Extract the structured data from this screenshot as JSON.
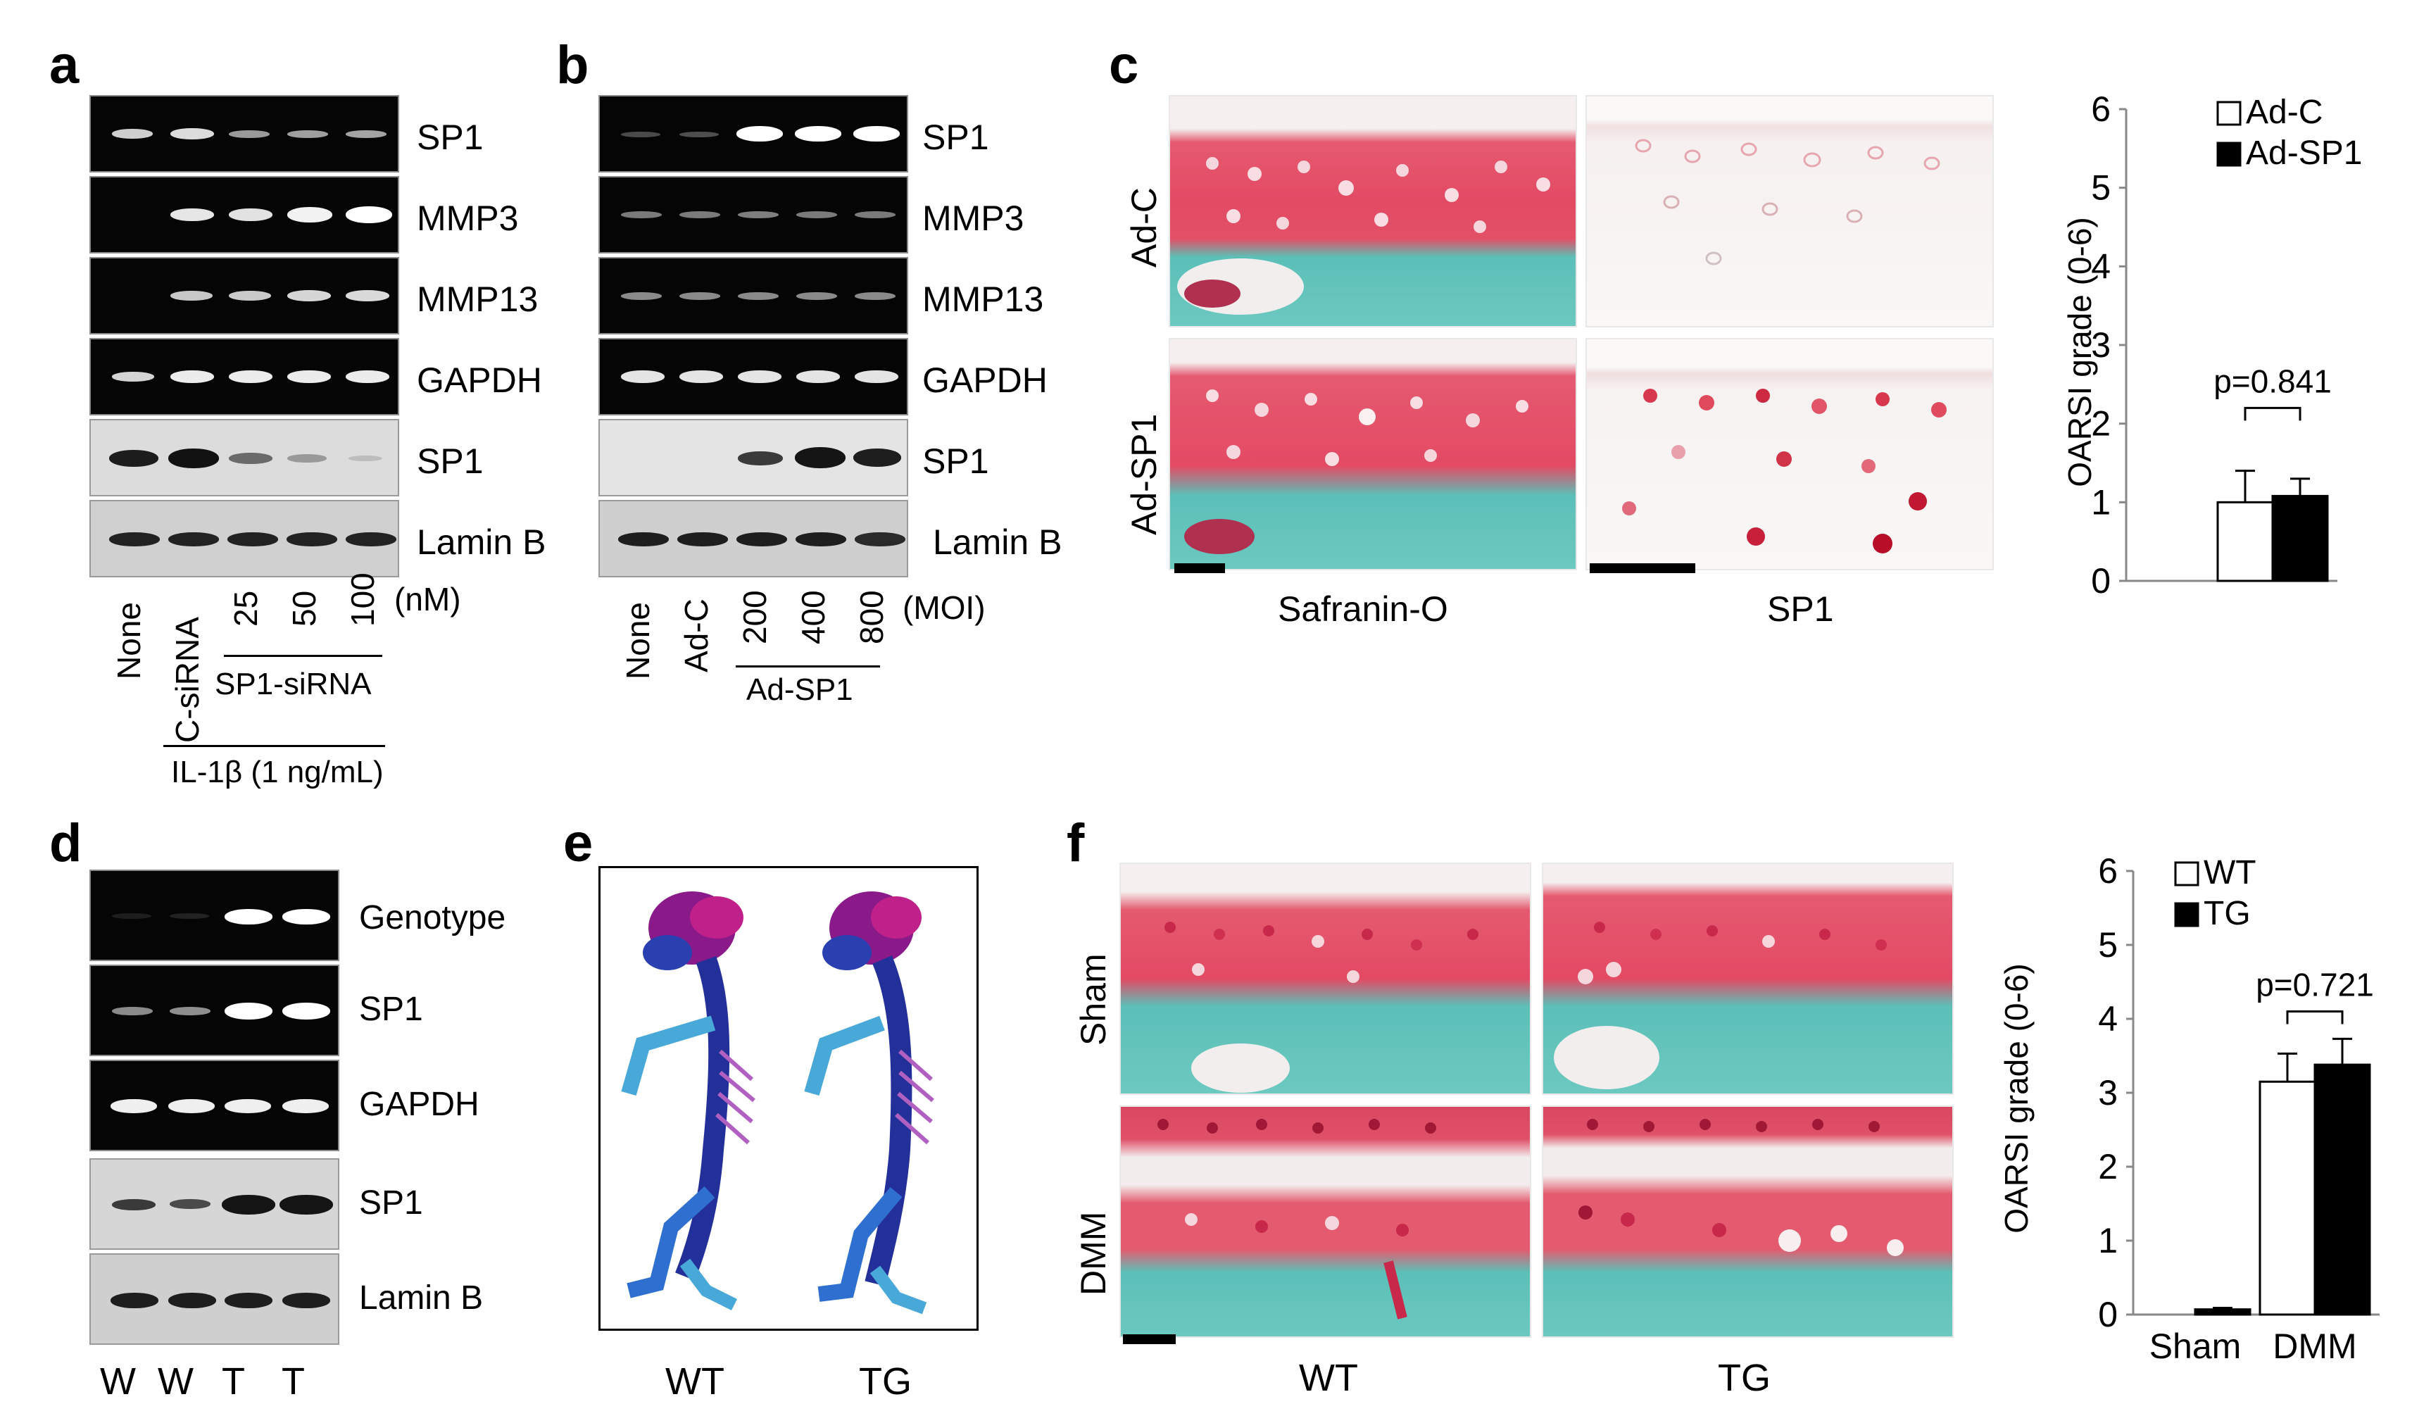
{
  "panel_letters": {
    "a": "a",
    "b": "b",
    "c": "c",
    "d": "d",
    "e": "e",
    "f": "f"
  },
  "panel_a": {
    "gel_labels": [
      "SP1",
      "MMP3",
      "MMP13",
      "GAPDH",
      "SP1",
      "Lamin B"
    ],
    "lanes": [
      "None",
      "C-siRNA",
      "25",
      "50",
      "100"
    ],
    "unit": "(nM)",
    "group_label": "SP1-siRNA",
    "treatment": "IL-1β (1 ng/mL)"
  },
  "panel_b": {
    "gel_labels": [
      "SP1",
      "MMP3",
      "MMP13",
      "GAPDH",
      "SP1",
      "Lamin B"
    ],
    "lanes": [
      "None",
      "Ad-C",
      "200",
      "400",
      "800"
    ],
    "unit": "(MOI)",
    "group_label": "Ad-SP1"
  },
  "panel_c": {
    "row_labels": [
      "Ad-C",
      "Ad-SP1"
    ],
    "col_labels": [
      "Safranin-O",
      "SP1"
    ]
  },
  "panel_d": {
    "gel_labels": [
      "Genotype",
      "SP1",
      "GAPDH",
      "SP1",
      "Lamin B"
    ],
    "lanes": [
      "W",
      "W",
      "T",
      "T"
    ]
  },
  "panel_e": {
    "labels": [
      "WT",
      "TG"
    ]
  },
  "panel_f": {
    "row_labels": [
      "Sham",
      "DMM"
    ],
    "col_labels": [
      "WT",
      "TG"
    ]
  },
  "colors": {
    "safranin": "#e0435a",
    "fast_green": "#5cc0b8",
    "ihc_stain": "#c2182e",
    "skeleton_blue": "#2a3fb0",
    "skeleton_purple": "#8a1a8a"
  },
  "chart_data": [
    {
      "type": "bar",
      "panel": "c",
      "ylabel": "OARSI grade (0-6)",
      "ylim": [
        0,
        6
      ],
      "yticks": [
        "0",
        "1",
        "2",
        "3",
        "4",
        "5",
        "6"
      ],
      "categories": [
        ""
      ],
      "series": [
        {
          "name": "Ad-C",
          "values": [
            1.0
          ],
          "errors": [
            0.4
          ],
          "fill": "#ffffff"
        },
        {
          "name": "Ad-SP1",
          "values": [
            1.08
          ],
          "errors": [
            0.22
          ],
          "fill": "#000000"
        }
      ],
      "annotations": [
        "p=0.841"
      ],
      "legend": "top-right"
    },
    {
      "type": "bar",
      "panel": "f",
      "ylabel": "OARSI grade (0-6)",
      "ylim": [
        0,
        6
      ],
      "yticks": [
        "0",
        "1",
        "2",
        "3",
        "4",
        "5",
        "6"
      ],
      "categories": [
        "Sham",
        "DMM"
      ],
      "series": [
        {
          "name": "WT",
          "values": [
            0.0,
            3.15
          ],
          "errors": [
            0.0,
            0.38
          ],
          "fill": "#ffffff"
        },
        {
          "name": "TG",
          "values": [
            0.07,
            3.38
          ],
          "errors": [
            0.02,
            0.35
          ],
          "fill": "#000000"
        }
      ],
      "annotations": [
        "p=0.721"
      ],
      "legend": "top-left"
    }
  ]
}
